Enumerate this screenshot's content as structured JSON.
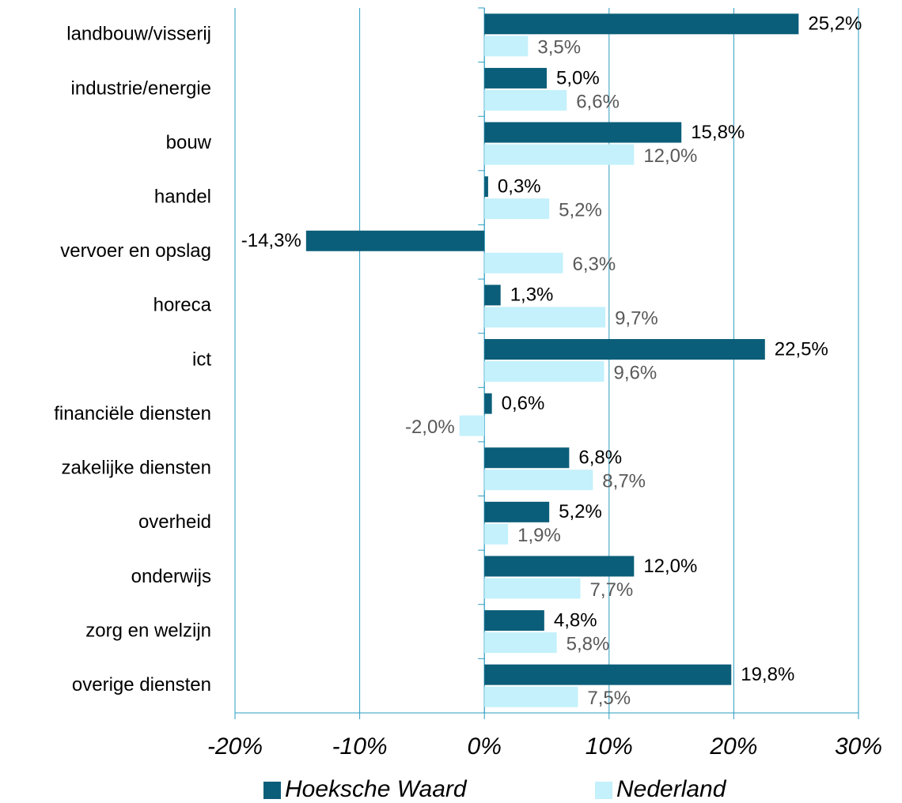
{
  "chart_data": {
    "type": "bar",
    "orientation": "horizontal",
    "categories": [
      "landbouw/visserij",
      "industrie/energie",
      "bouw",
      "handel",
      "vervoer en opslag",
      "horeca",
      "ict",
      "financiële diensten",
      "zakelijke diensten",
      "overheid",
      "onderwijs",
      "zorg en welzijn",
      "overige diensten"
    ],
    "series": [
      {
        "name": "Hoeksche Waard",
        "color": "#0b5e79",
        "values": [
          25.2,
          5.0,
          15.8,
          0.3,
          -14.3,
          1.3,
          22.5,
          0.6,
          6.8,
          5.2,
          12.0,
          4.8,
          19.8
        ],
        "value_labels": [
          "25,2%",
          "5,0%",
          "15,8%",
          "0,3%",
          "-14,3%",
          "1,3%",
          "22,5%",
          "0,6%",
          "6,8%",
          "5,2%",
          "12,0%",
          "4,8%",
          "19,8%"
        ]
      },
      {
        "name": "Nederland",
        "color": "#c4f1fb",
        "values": [
          3.5,
          6.6,
          12.0,
          5.2,
          6.3,
          9.7,
          9.6,
          -2.0,
          8.7,
          1.9,
          7.7,
          5.8,
          7.5
        ],
        "value_labels": [
          "3,5%",
          "6,6%",
          "12,0%",
          "5,2%",
          "6,3%",
          "9,7%",
          "9,6%",
          "-2,0%",
          "8,7%",
          "1,9%",
          "7,7%",
          "5,8%",
          "7,5%"
        ]
      }
    ],
    "xlim": [
      -20,
      30
    ],
    "xticks": [
      {
        "value": -20,
        "label": "-20%"
      },
      {
        "value": -10,
        "label": "-10%"
      },
      {
        "value": 0,
        "label": "0%"
      },
      {
        "value": 10,
        "label": "10%"
      },
      {
        "value": 20,
        "label": "20%"
      },
      {
        "value": 30,
        "label": "30%"
      }
    ],
    "grid": true,
    "legend": "bottom"
  }
}
